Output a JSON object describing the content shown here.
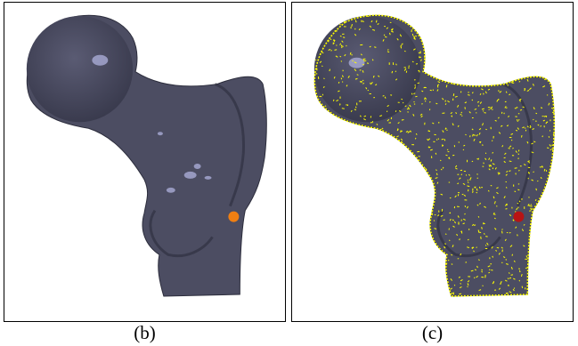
{
  "figure": {
    "panels": [
      {
        "id": "b",
        "caption": "(b)",
        "marker_color": "#f07f12",
        "point_color": null
      },
      {
        "id": "c",
        "caption": "(c)",
        "marker_color": "#b81414",
        "point_color": "#ffff00"
      }
    ],
    "bone_color": "#4c4d62",
    "bone_shadow_color": "#2c2d3c",
    "highlight_color": "#a9abd6"
  }
}
